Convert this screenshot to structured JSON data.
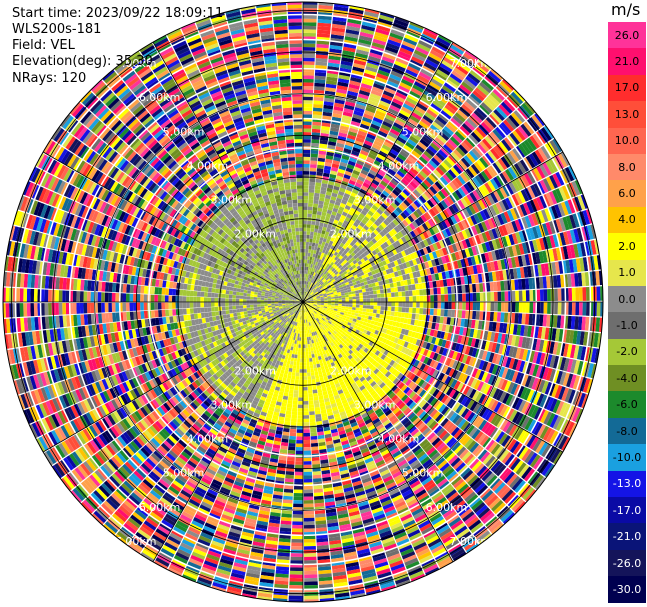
{
  "header": {
    "start_time": "Start time: 2023/09/22 18:09:11",
    "instrument": "WLS200s-181",
    "field": "Field: VEL",
    "elevation": "Elevation(deg): 35.30",
    "nrays": "NRays: 120"
  },
  "colorbar": {
    "unit": "m/s",
    "bins": [
      {
        "label": "26.0",
        "color": "#ff3399",
        "dark": false
      },
      {
        "label": "21.0",
        "color": "#ff0f6e",
        "dark": false
      },
      {
        "label": "17.0",
        "color": "#ff2d2d",
        "dark": false
      },
      {
        "label": "13.0",
        "color": "#ff4e39",
        "dark": false
      },
      {
        "label": "10.0",
        "color": "#ff6650",
        "dark": false
      },
      {
        "label": "8.0",
        "color": "#ff8a6a",
        "dark": false
      },
      {
        "label": "6.0",
        "color": "#ffa14a",
        "dark": false
      },
      {
        "label": "4.0",
        "color": "#ffc300",
        "dark": false
      },
      {
        "label": "2.0",
        "color": "#ffff00",
        "dark": false
      },
      {
        "label": "1.0",
        "color": "#e6e64c",
        "dark": false
      },
      {
        "label": "0.0",
        "color": "#8c8c8c",
        "dark": false
      },
      {
        "label": "-1.0",
        "color": "#6e6e6e",
        "dark": false
      },
      {
        "label": "-2.0",
        "color": "#a5c837",
        "dark": false
      },
      {
        "label": "-4.0",
        "color": "#6f8f23",
        "dark": false
      },
      {
        "label": "-6.0",
        "color": "#1c8a2c",
        "dark": false
      },
      {
        "label": "-8.0",
        "color": "#136a96",
        "dark": false
      },
      {
        "label": "-10.0",
        "color": "#1aa0e0",
        "dark": false
      },
      {
        "label": "-13.0",
        "color": "#1414e6",
        "dark": true
      },
      {
        "label": "-17.0",
        "color": "#0a0aa5",
        "dark": true
      },
      {
        "label": "-21.0",
        "color": "#0a1478",
        "dark": true
      },
      {
        "label": "-26.0",
        "color": "#14145a",
        "dark": true
      },
      {
        "label": "-30.0",
        "color": "#000050",
        "dark": true
      }
    ]
  },
  "chart_data": {
    "type": "ppi-polar",
    "field": "VEL",
    "unit": "m/s",
    "n_rays": 120,
    "elevation_deg": 35.3,
    "range_ring_labels": [
      "2.00km",
      "3.00km",
      "4.00km",
      "5.00km",
      "6.00km",
      "7.00km"
    ],
    "range_ring_km": [
      2,
      3,
      4,
      5,
      6,
      7
    ],
    "max_range_km": 7.2,
    "valid_range_km": 3.0,
    "spoke_angles_deg": [
      0,
      30,
      60,
      90,
      120,
      150,
      180,
      210,
      240,
      270,
      300,
      330
    ],
    "inner_pattern": "gray near-zero velocities with green (-2 to -4 m/s) patches in north and west; yellow (+1 to +2 m/s) dominating south-east",
    "outer_pattern": "noise (random velocities) beyond ~3 km"
  }
}
